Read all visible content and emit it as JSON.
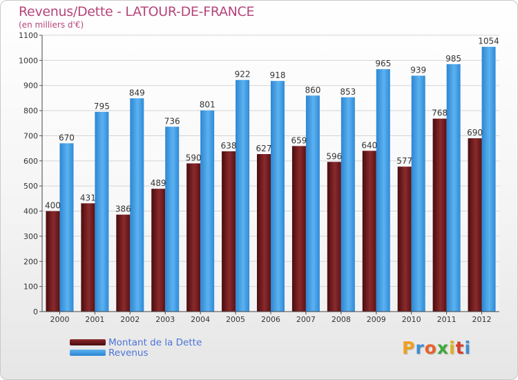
{
  "header": {
    "title": "Revenus/Dette - LATOUR-DE-FRANCE",
    "subtitle": "(en milliers d'€)"
  },
  "chart_data": {
    "type": "bar",
    "title": "Revenus/Dette - LATOUR-DE-FRANCE",
    "subtitle": "(en milliers d'€)",
    "categories": [
      "2000",
      "2001",
      "2002",
      "2003",
      "2004",
      "2005",
      "2006",
      "2007",
      "2008",
      "2009",
      "2010",
      "2011",
      "2012"
    ],
    "series": [
      {
        "name": "Montant de la Dette",
        "values": [
          400,
          431,
          386,
          489,
          590,
          638,
          627,
          659,
          596,
          640,
          577,
          768,
          690
        ],
        "color": "#7a1e20"
      },
      {
        "name": "Revenus",
        "values": [
          670,
          795,
          849,
          736,
          801,
          922,
          918,
          860,
          853,
          965,
          939,
          985,
          1054
        ],
        "color": "#3d9ee6"
      }
    ],
    "ylim": [
      0,
      1100
    ],
    "yticks": [
      0,
      100,
      200,
      300,
      400,
      500,
      600,
      700,
      800,
      900,
      1000,
      1100
    ],
    "grid": true,
    "legend_position": "bottom-left"
  },
  "legend": [
    {
      "label": "Montant de la Dette",
      "color": "#5c1012"
    },
    {
      "label": "Revenus",
      "color": "#3d9ee6"
    }
  ],
  "logo": {
    "text": "Proxiti",
    "letters": [
      {
        "ch": "P",
        "color": "#f0a01e"
      },
      {
        "ch": "r",
        "color": "#3c8ed6"
      },
      {
        "ch": "o",
        "color": "#e8622a"
      },
      {
        "ch": "x",
        "color": "#3fa83c"
      },
      {
        "ch": "i",
        "color": "#e0b21c"
      },
      {
        "ch": "t",
        "color": "#d6402a"
      },
      {
        "ch": "i",
        "color": "#3c8ed6"
      }
    ]
  }
}
